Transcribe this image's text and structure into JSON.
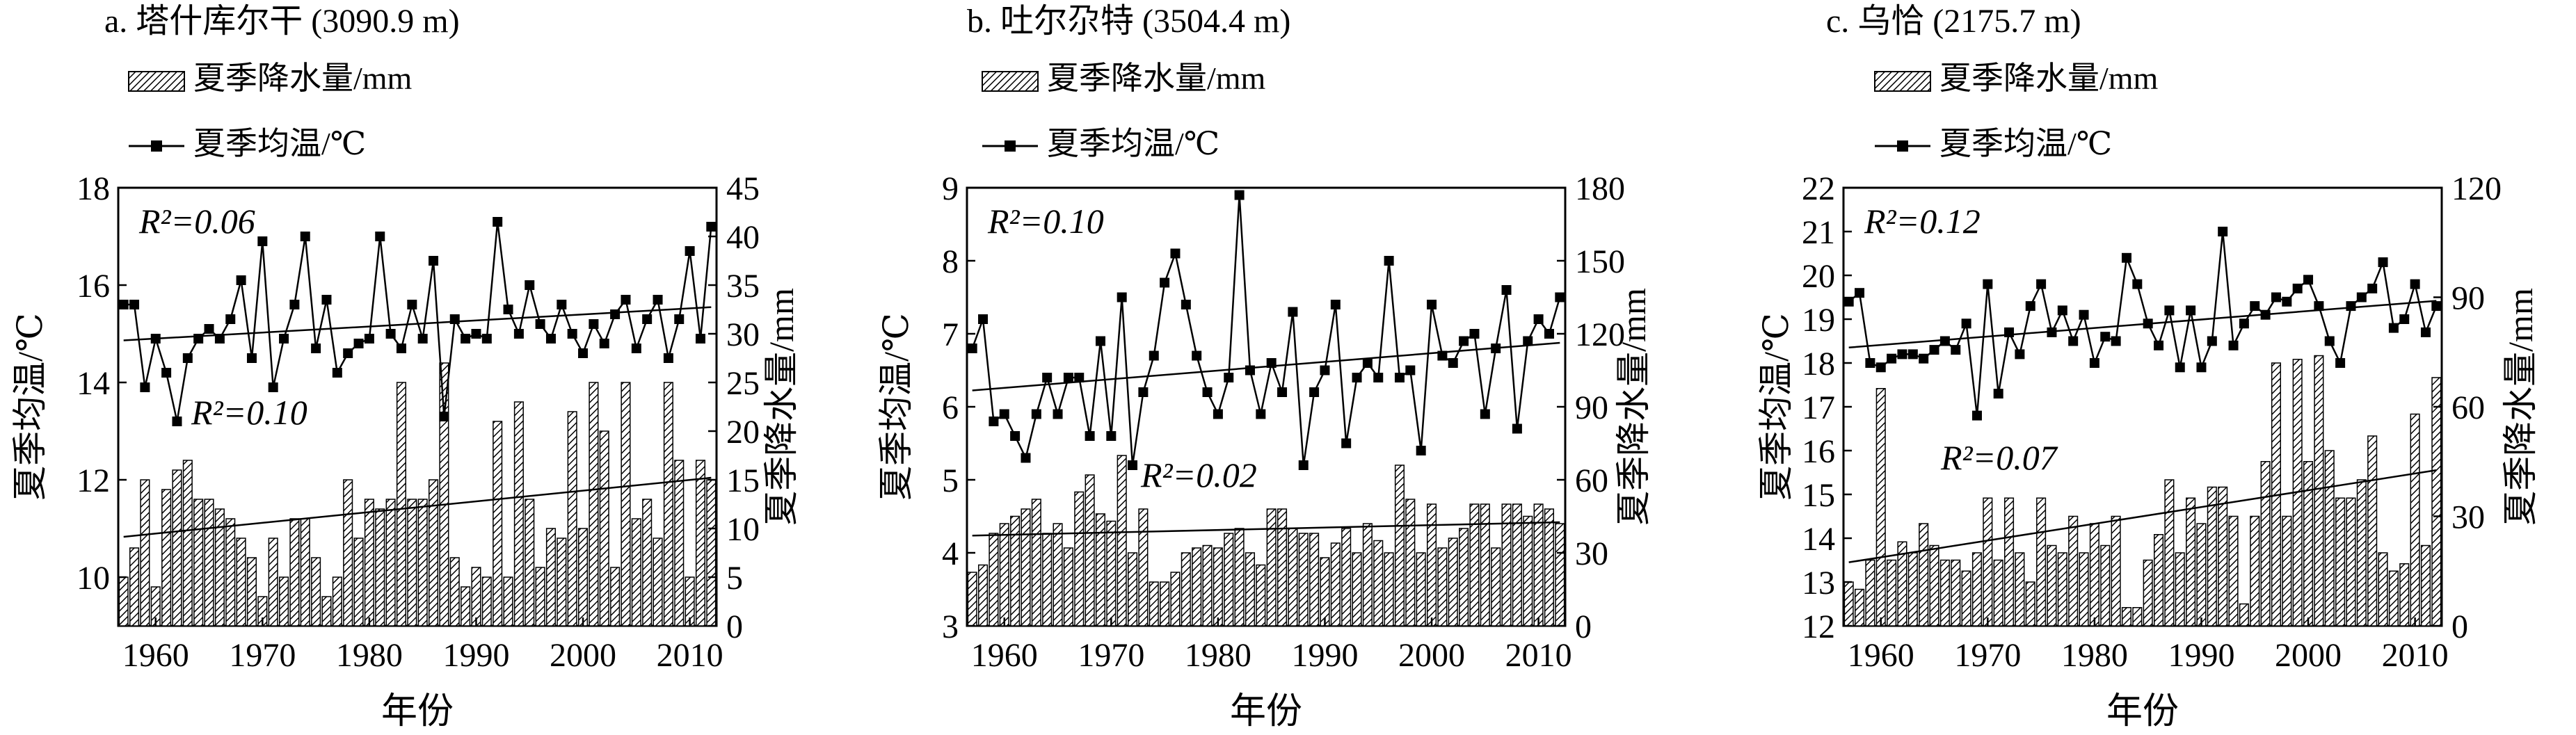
{
  "figure": {
    "panel_titles": [
      "a. 塔什库尔干 (3090.9 m)",
      "b. 吐尔尕特 (3504.4 m)",
      "c. 乌恰 (2175.7 m)"
    ],
    "legend": {
      "precip": "夏季降水量/mm",
      "temp": "夏季均温/℃"
    },
    "xlabel": "年份",
    "ylabel_left": "夏季均温/℃",
    "ylabel_right": "夏季降水量/mm",
    "colors": {
      "ink": "#000000",
      "background": "#ffffff",
      "bar_fill": "#ffffff"
    }
  },
  "chart_data": [
    {
      "type": "bar+line",
      "title": "a. 塔什库尔干 (3090.9 m)",
      "xlabel": "年份",
      "x": [
        1957,
        1958,
        1959,
        1960,
        1961,
        1962,
        1963,
        1964,
        1965,
        1966,
        1967,
        1968,
        1969,
        1970,
        1971,
        1972,
        1973,
        1974,
        1975,
        1976,
        1977,
        1978,
        1979,
        1980,
        1981,
        1982,
        1983,
        1984,
        1985,
        1986,
        1987,
        1988,
        1989,
        1990,
        1991,
        1992,
        1993,
        1994,
        1995,
        1996,
        1997,
        1998,
        1999,
        2000,
        2001,
        2002,
        2003,
        2004,
        2005,
        2006,
        2007,
        2008,
        2009,
        2010,
        2011,
        2012
      ],
      "xticks": [
        1960,
        1970,
        1980,
        1990,
        2000,
        2010
      ],
      "series": [
        {
          "name": "夏季均温/℃",
          "kind": "line",
          "axis": "left",
          "values": [
            15.6,
            15.6,
            13.9,
            14.9,
            14.2,
            13.2,
            14.5,
            14.9,
            15.1,
            14.9,
            15.3,
            16.1,
            14.5,
            16.9,
            13.9,
            14.9,
            15.6,
            17.0,
            14.7,
            15.7,
            14.2,
            14.6,
            14.8,
            14.9,
            17.0,
            15.0,
            14.7,
            15.6,
            14.9,
            16.5,
            13.3,
            15.3,
            14.9,
            15.0,
            14.9,
            17.3,
            15.5,
            15.0,
            16.0,
            15.2,
            14.9,
            15.6,
            15.0,
            14.6,
            15.2,
            14.8,
            15.4,
            15.7,
            14.7,
            15.3,
            15.7,
            14.5,
            15.3,
            16.7,
            14.9,
            17.2
          ]
        },
        {
          "name": "夏季降水量/mm",
          "kind": "bar",
          "axis": "right",
          "values": [
            5,
            8,
            15,
            4,
            14,
            16,
            17,
            13,
            13,
            12,
            11,
            9,
            7,
            3,
            9,
            5,
            11,
            11,
            7,
            3,
            5,
            15,
            9,
            13,
            12,
            13,
            25,
            13,
            13,
            15,
            27,
            7,
            4,
            6,
            5,
            21,
            5,
            23,
            13,
            6,
            10,
            9,
            22,
            10,
            25,
            20,
            6,
            25,
            11,
            13,
            9,
            25,
            17,
            5,
            17,
            15
          ]
        }
      ],
      "ylim_left": [
        9,
        18
      ],
      "yticks_left": [
        10,
        12,
        14,
        16,
        18
      ],
      "ylim_right": [
        0,
        45
      ],
      "yticks_right": [
        0,
        5,
        10,
        15,
        20,
        25,
        30,
        35,
        40,
        45
      ],
      "annotations": [
        {
          "text": "R²=0.06",
          "refers_to": "夏季均温/℃"
        },
        {
          "text": "R²=0.10",
          "refers_to": "夏季降水量/mm"
        }
      ]
    },
    {
      "type": "bar+line",
      "title": "b. 吐尔尕特 (3504.4 m)",
      "xlabel": "年份",
      "x": [
        1957,
        1958,
        1959,
        1960,
        1961,
        1962,
        1963,
        1964,
        1965,
        1966,
        1967,
        1968,
        1969,
        1970,
        1971,
        1972,
        1973,
        1974,
        1975,
        1976,
        1977,
        1978,
        1979,
        1980,
        1981,
        1982,
        1983,
        1984,
        1985,
        1986,
        1987,
        1988,
        1989,
        1990,
        1991,
        1992,
        1993,
        1994,
        1995,
        1996,
        1997,
        1998,
        1999,
        2000,
        2001,
        2002,
        2003,
        2004,
        2005,
        2006,
        2007,
        2008,
        2009,
        2010,
        2011,
        2012
      ],
      "xticks": [
        1960,
        1970,
        1980,
        1990,
        2000,
        2010
      ],
      "series": [
        {
          "name": "夏季均温/℃",
          "kind": "line",
          "axis": "left",
          "values": [
            6.8,
            7.2,
            5.8,
            5.9,
            5.6,
            5.3,
            5.9,
            6.4,
            5.9,
            6.4,
            6.4,
            5.6,
            6.9,
            5.6,
            7.5,
            5.2,
            6.2,
            6.7,
            7.7,
            8.1,
            7.4,
            6.7,
            6.2,
            5.9,
            6.4,
            8.9,
            6.5,
            5.9,
            6.6,
            6.2,
            7.3,
            5.2,
            6.2,
            6.5,
            7.4,
            5.5,
            6.4,
            6.6,
            6.4,
            8.0,
            6.4,
            6.5,
            5.4,
            7.4,
            6.7,
            6.6,
            6.9,
            7.0,
            5.9,
            6.8,
            7.6,
            5.7,
            6.9,
            7.2,
            7.0,
            7.5
          ]
        },
        {
          "name": "夏季降水量/mm",
          "kind": "bar",
          "axis": "right",
          "values": [
            22,
            25,
            38,
            42,
            45,
            48,
            52,
            38,
            42,
            32,
            55,
            62,
            46,
            43,
            70,
            30,
            48,
            18,
            18,
            22,
            30,
            32,
            33,
            32,
            38,
            40,
            30,
            25,
            48,
            48,
            40,
            38,
            38,
            28,
            34,
            40,
            30,
            42,
            35,
            30,
            66,
            52,
            30,
            50,
            32,
            36,
            40,
            50,
            50,
            32,
            50,
            50,
            45,
            50,
            48,
            42
          ]
        }
      ],
      "ylim_left": [
        3,
        9
      ],
      "yticks_left": [
        3,
        4,
        5,
        6,
        7,
        8,
        9
      ],
      "ylim_right": [
        0,
        180
      ],
      "yticks_right": [
        0,
        30,
        60,
        90,
        120,
        150,
        180
      ],
      "annotations": [
        {
          "text": "R²=0.10",
          "refers_to": "夏季均温/℃"
        },
        {
          "text": "R²=0.02",
          "refers_to": "夏季降水量/mm"
        }
      ]
    },
    {
      "type": "bar+line",
      "title": "c. 乌恰 (2175.7 m)",
      "xlabel": "年份",
      "x": [
        1957,
        1958,
        1959,
        1960,
        1961,
        1962,
        1963,
        1964,
        1965,
        1966,
        1967,
        1968,
        1969,
        1970,
        1971,
        1972,
        1973,
        1974,
        1975,
        1976,
        1977,
        1978,
        1979,
        1980,
        1981,
        1982,
        1983,
        1984,
        1985,
        1986,
        1987,
        1988,
        1989,
        1990,
        1991,
        1992,
        1993,
        1994,
        1995,
        1996,
        1997,
        1998,
        1999,
        2000,
        2001,
        2002,
        2003,
        2004,
        2005,
        2006,
        2007,
        2008,
        2009,
        2010,
        2011,
        2012
      ],
      "xticks": [
        1960,
        1970,
        1980,
        1990,
        2000,
        2010
      ],
      "series": [
        {
          "name": "夏季均温/℃",
          "kind": "line",
          "axis": "left",
          "values": [
            19.4,
            19.6,
            18.0,
            17.9,
            18.1,
            18.2,
            18.2,
            18.1,
            18.3,
            18.5,
            18.3,
            18.9,
            16.8,
            19.8,
            17.3,
            18.7,
            18.2,
            19.3,
            19.8,
            18.7,
            19.2,
            18.5,
            19.1,
            18.0,
            18.6,
            18.5,
            20.4,
            19.8,
            18.9,
            18.4,
            19.2,
            17.9,
            19.2,
            17.9,
            18.5,
            21.0,
            18.4,
            18.9,
            19.3,
            19.1,
            19.5,
            19.4,
            19.7,
            19.9,
            19.3,
            18.5,
            18.0,
            19.3,
            19.5,
            19.7,
            20.3,
            18.8,
            19.0,
            19.8,
            18.7,
            19.3
          ]
        },
        {
          "name": "夏季降水量/mm",
          "kind": "bar",
          "axis": "right",
          "values": [
            12,
            10,
            18,
            65,
            18,
            23,
            20,
            28,
            22,
            18,
            18,
            15,
            20,
            35,
            18,
            35,
            20,
            12,
            35,
            22,
            20,
            30,
            20,
            28,
            22,
            30,
            5,
            5,
            18,
            25,
            40,
            20,
            35,
            28,
            38,
            38,
            30,
            6,
            30,
            45,
            72,
            30,
            73,
            45,
            74,
            48,
            35,
            35,
            40,
            52,
            20,
            15,
            17,
            58,
            22,
            68
          ]
        }
      ],
      "ylim_left": [
        12,
        22
      ],
      "yticks_left": [
        12,
        13,
        14,
        15,
        16,
        17,
        18,
        19,
        20,
        21,
        22
      ],
      "ylim_right": [
        0,
        120
      ],
      "yticks_right": [
        0,
        30,
        60,
        90,
        120
      ],
      "annotations": [
        {
          "text": "R²=0.12",
          "refers_to": "夏季均温/℃"
        },
        {
          "text": "R²=0.07",
          "refers_to": "夏季降水量/mm"
        }
      ]
    }
  ]
}
